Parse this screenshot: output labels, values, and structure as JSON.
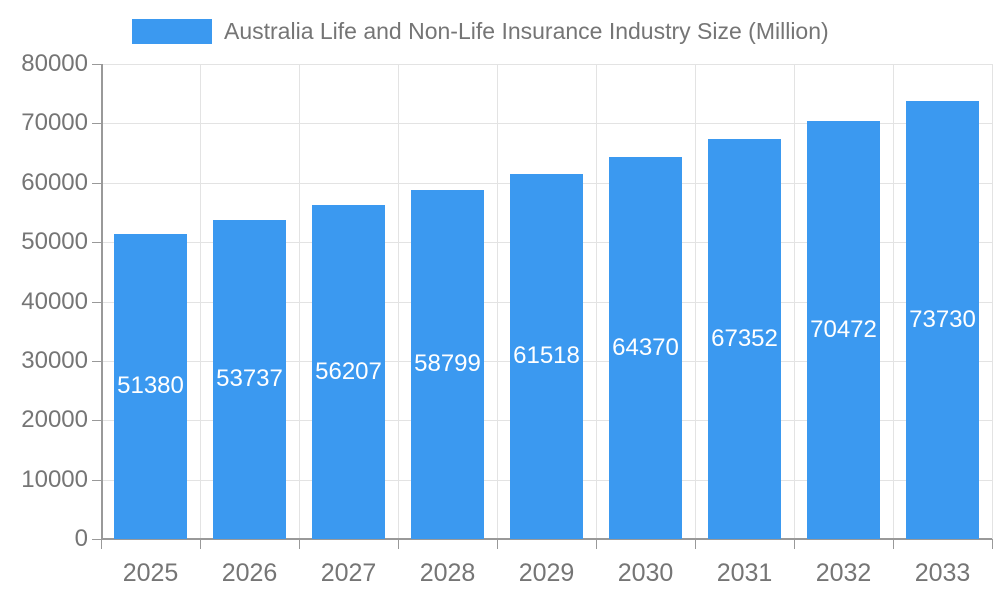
{
  "chart_data": {
    "type": "bar",
    "title": "Australia Life and Non-Life Insurance Industry Size (Million)",
    "legend": {
      "label": "Australia Life and Non-Life Insurance Industry Size (Million)",
      "position": "top"
    },
    "categories": [
      "2025",
      "2026",
      "2027",
      "2028",
      "2029",
      "2030",
      "2031",
      "2032",
      "2033"
    ],
    "series": [
      {
        "name": "Australia Life and Non-Life Insurance Industry Size (Million)",
        "values": [
          51380,
          53737,
          56207,
          58799,
          61518,
          64370,
          67352,
          70472,
          73730
        ]
      }
    ],
    "xlabel": "",
    "ylabel": "",
    "ylim": [
      0,
      80000
    ],
    "ytick_step": 10000,
    "ytick_labels": [
      "0",
      "10000",
      "20000",
      "30000",
      "40000",
      "50000",
      "60000",
      "70000",
      "80000"
    ],
    "grid": true,
    "value_labels_shown": true,
    "colors": {
      "bar": "#3B99F0",
      "axis_label": "#757575",
      "grid_line": "#e3e3e3",
      "axis_line": "#999999",
      "value_label": "#ffffff",
      "background": "#ffffff"
    }
  }
}
